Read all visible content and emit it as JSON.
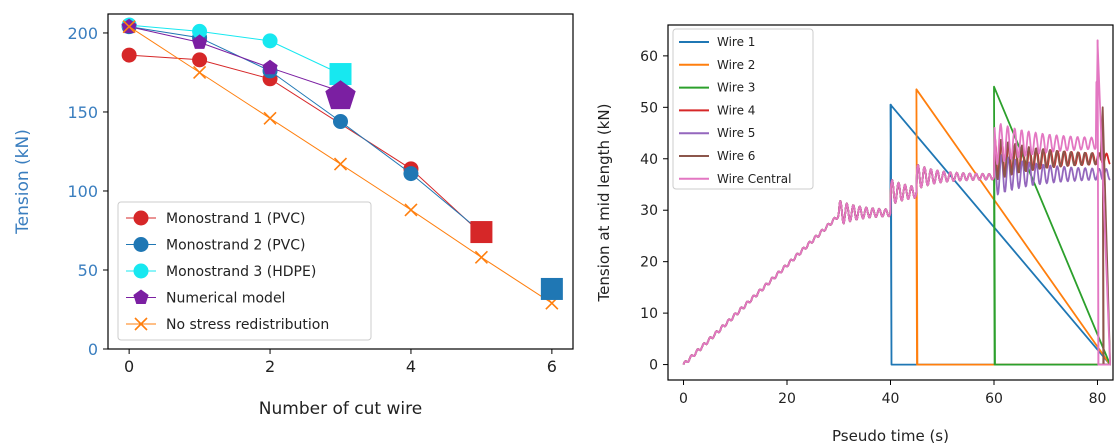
{
  "chart_data": [
    {
      "type": "line",
      "xlabel": "Number of cut wire",
      "ylabel": "Tension (kN)",
      "ylabel_color": "#3a7ebf",
      "xlim": [
        -0.3,
        6.3
      ],
      "ylim": [
        0,
        212
      ],
      "xticks": [
        0,
        2,
        4,
        6
      ],
      "yticks": [
        0,
        50,
        100,
        150,
        200
      ],
      "legend_position": "lower-left",
      "series": [
        {
          "name": "Monostrand 1 (PVC)",
          "color": "#d62728",
          "marker": "circle",
          "x": [
            0,
            1,
            2,
            4,
            5
          ],
          "y": [
            186,
            183,
            171,
            114,
            73
          ]
        },
        {
          "name": "Monostrand 2 (PVC)",
          "color": "#1f77b4",
          "marker": "circle",
          "x": [
            0,
            1,
            2,
            3,
            4,
            5
          ],
          "y": [
            204,
            197,
            176,
            144,
            111,
            74
          ]
        },
        {
          "name": "Monostrand 3 (HDPE)",
          "color": "#17e8f0",
          "marker": "circle",
          "x": [
            0,
            1,
            2,
            3
          ],
          "y": [
            205,
            201,
            195,
            174
          ]
        },
        {
          "name": "Numerical model",
          "color": "#7b1fa2",
          "marker": "pentagon",
          "x": [
            0,
            1,
            2,
            3
          ],
          "y": [
            204,
            194,
            178,
            163
          ]
        },
        {
          "name": "No stress redistribution",
          "color": "#ff7f0e",
          "marker": "x",
          "x": [
            0,
            1,
            2,
            3,
            4,
            5,
            6
          ],
          "y": [
            204,
            175,
            146,
            117,
            88,
            58,
            29
          ]
        }
      ],
      "highlights": [
        {
          "x": 3,
          "y": 174,
          "color": "#17e8f0",
          "marker": "square"
        },
        {
          "x": 3,
          "y": 160,
          "color": "#7b1fa2",
          "marker": "pentagon"
        },
        {
          "x": 5,
          "y": 74,
          "color": "#d62728",
          "marker": "square"
        },
        {
          "x": 6,
          "y": 38,
          "color": "#1f77b4",
          "marker": "square"
        }
      ]
    },
    {
      "type": "line",
      "xlabel": "Pseudo time (s)",
      "ylabel": "Tension at mid length (kN)",
      "xlim": [
        -3,
        83
      ],
      "ylim": [
        -3,
        66
      ],
      "xticks": [
        0,
        20,
        40,
        60,
        80
      ],
      "yticks": [
        0,
        10,
        20,
        30,
        40,
        50,
        60
      ],
      "legend_position": "upper-left",
      "series": [
        {
          "name": "Wire 1",
          "color": "#1f77b4",
          "cut_time": 40,
          "cut_peak": 50.5,
          "plateau_after": null
        },
        {
          "name": "Wire 2",
          "color": "#ff7f0e",
          "cut_time": 45,
          "cut_peak": 53.5,
          "plateau_after": null
        },
        {
          "name": "Wire 3",
          "color": "#2ca02c",
          "cut_time": 60,
          "cut_peak": 54,
          "plateau_after": null
        },
        {
          "name": "Wire 4",
          "color": "#d62728",
          "cut_time": null,
          "cut_peak": null,
          "plateau_after": 40
        },
        {
          "name": "Wire 5",
          "color": "#9467bd",
          "cut_time": null,
          "cut_peak": null,
          "plateau_after": 37
        },
        {
          "name": "Wire 6",
          "color": "#8c564b",
          "cut_time": 81,
          "cut_peak": 50,
          "plateau_after": 40
        },
        {
          "name": "Wire Central",
          "color": "#e377c2",
          "cut_time": 80,
          "cut_peak": 63,
          "plateau_after": 43
        }
      ],
      "ramp": {
        "t_end": 30,
        "value_end": 29
      },
      "stages": [
        {
          "t_start": 30,
          "t_end": 40,
          "value": 29.5
        },
        {
          "t_start": 40,
          "t_end": 45,
          "value": 33.5
        },
        {
          "t_start": 45,
          "t_end": 60,
          "value": 36.5
        }
      ]
    }
  ]
}
